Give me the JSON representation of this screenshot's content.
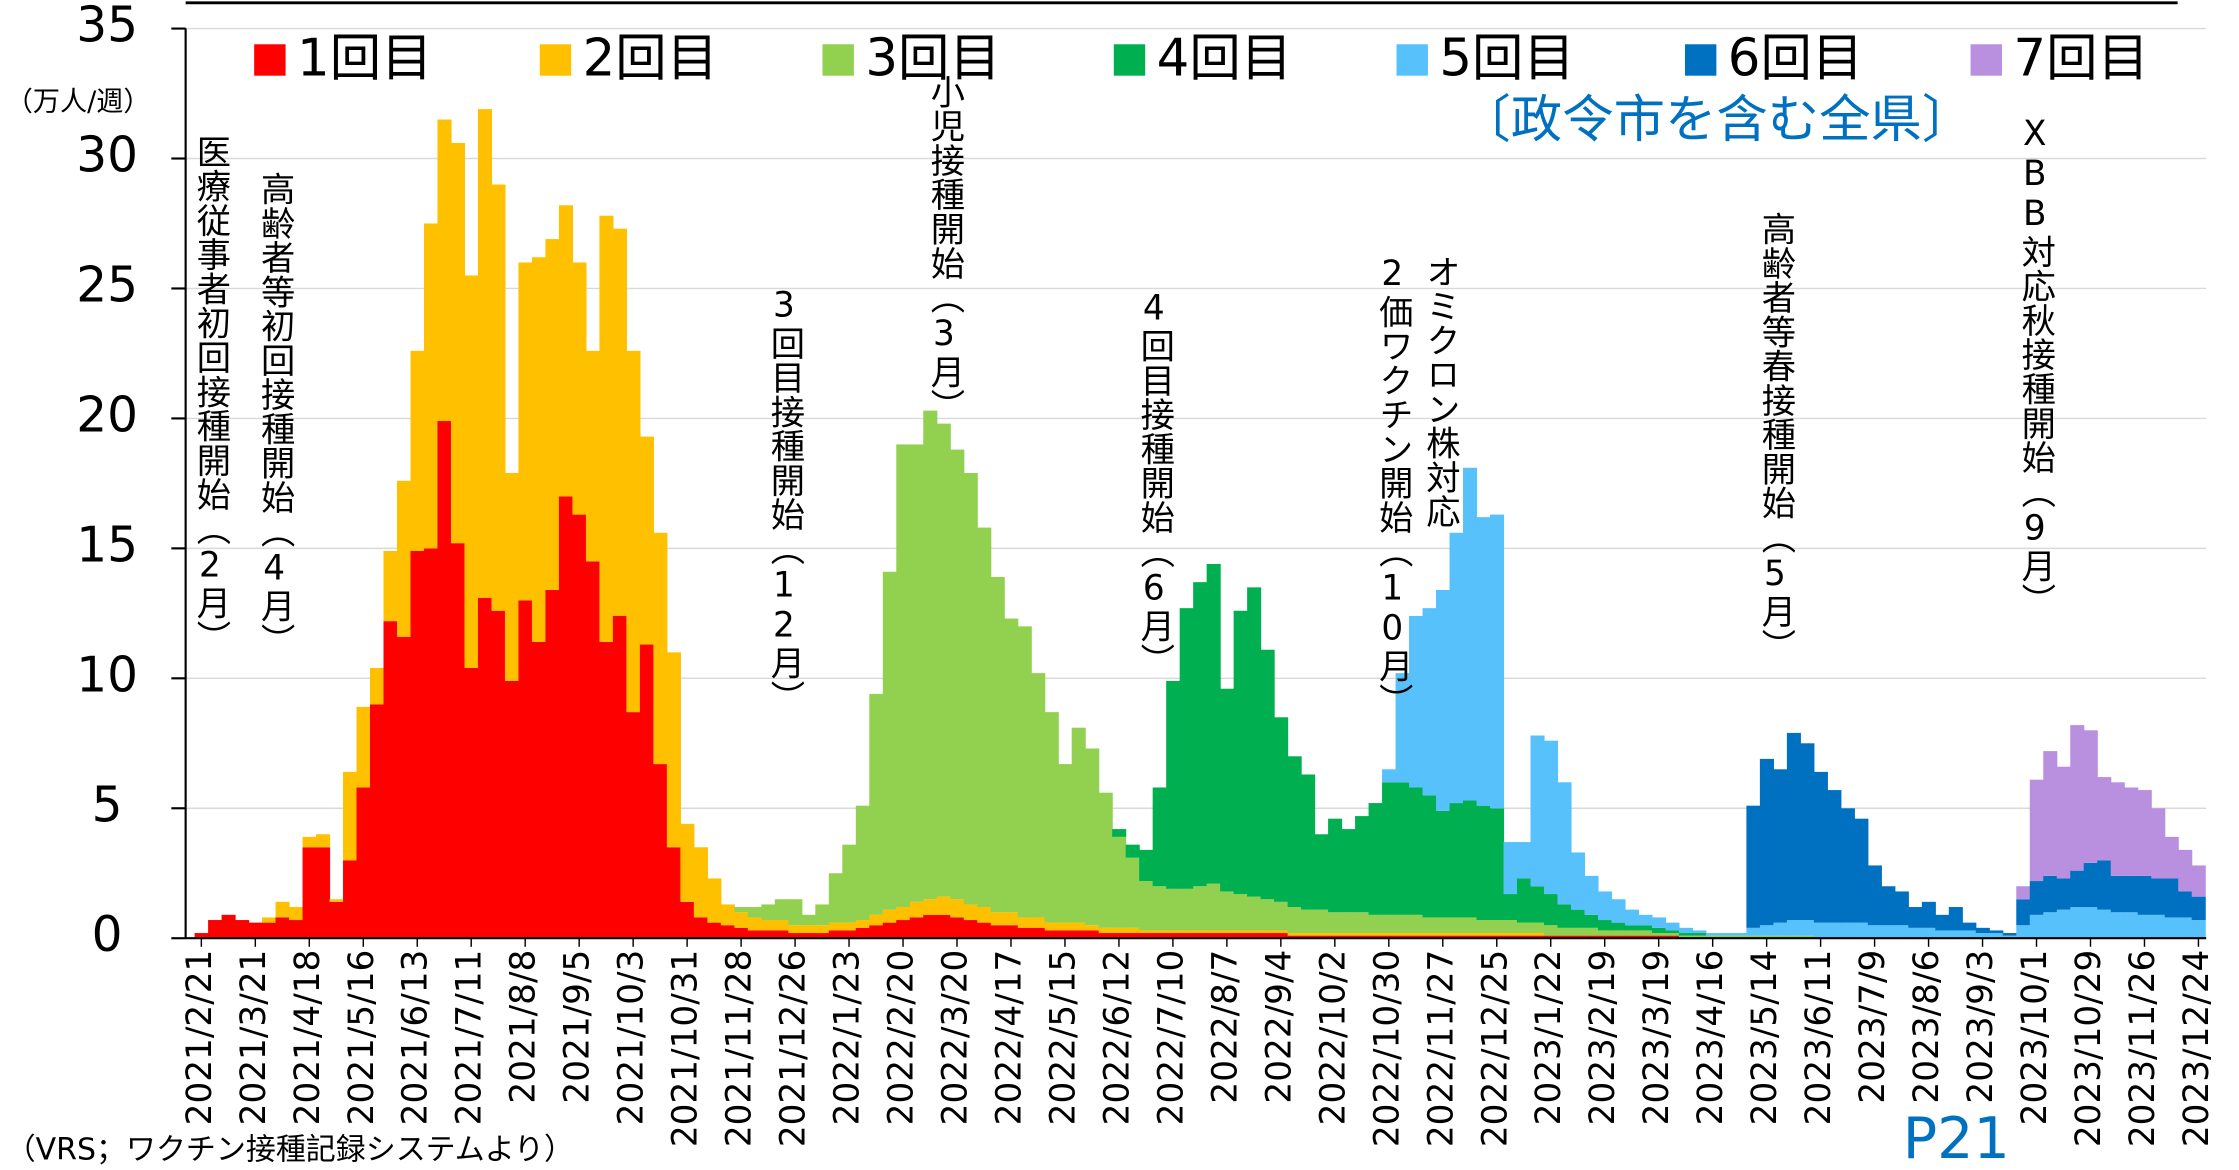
{
  "chart_data": {
    "type": "stacked_bar",
    "subtitle": "〔政令市を含む全県〕",
    "ylabel": "（万人/週）",
    "note": "（VRS；ワクチン接種記録システムより）",
    "page_label": "P21",
    "ylim": [
      0,
      35
    ],
    "yticks": [
      0,
      5,
      10,
      15,
      20,
      25,
      30,
      35
    ],
    "grid": true,
    "legend": "top",
    "annotations": [
      [
        "医療従事者初回接種開始（2月）"
      ],
      [
        "高齢者等初回接種開始（4月）"
      ],
      [
        "3回目接種開始（12月）"
      ],
      [
        "小児接種開始（3月）"
      ],
      [
        "4回目接種開始（6月）"
      ],
      [
        "オミクロン株対応",
        "2価ワクチン開始（10月）"
      ],
      [
        "高齢者等春接種開始（5月）"
      ],
      [
        "XBB対応秋接種開始（9月）"
      ]
    ],
    "categories": [
      "2021/2/21",
      null,
      null,
      null,
      "2021/3/21",
      null,
      null,
      null,
      "2021/4/18",
      null,
      null,
      null,
      "2021/5/16",
      null,
      null,
      null,
      "2021/6/13",
      null,
      null,
      null,
      "2021/7/11",
      null,
      null,
      null,
      "2021/8/8",
      null,
      null,
      null,
      "2021/9/5",
      null,
      null,
      null,
      "2021/10/3",
      null,
      null,
      null,
      "2021/10/31",
      null,
      null,
      null,
      "2021/11/28",
      null,
      null,
      null,
      "2021/12/26",
      null,
      null,
      null,
      "2022/1/23",
      null,
      null,
      null,
      "2022/2/20",
      null,
      null,
      null,
      "2022/3/20",
      null,
      null,
      null,
      "2022/4/17",
      null,
      null,
      null,
      "2022/5/15",
      null,
      null,
      null,
      "2022/6/12",
      null,
      null,
      null,
      "2022/7/10",
      null,
      null,
      null,
      "2022/8/7",
      null,
      null,
      null,
      "2022/9/4",
      null,
      null,
      null,
      "2022/10/2",
      null,
      null,
      null,
      "2022/10/30",
      null,
      null,
      null,
      "2022/11/27",
      null,
      null,
      null,
      "2022/12/25",
      null,
      null,
      null,
      "2023/1/22",
      null,
      null,
      null,
      "2023/2/19",
      null,
      null,
      null,
      "2023/3/19",
      null,
      null,
      null,
      "2023/4/16",
      null,
      null,
      null,
      "2023/5/14",
      null,
      null,
      null,
      "2023/6/11",
      null,
      null,
      null,
      "2023/7/9",
      null,
      null,
      null,
      "2023/8/6",
      null,
      null,
      null,
      "2023/9/3",
      null,
      null,
      null,
      "2023/10/1",
      null,
      null,
      null,
      "2023/10/29",
      null,
      null,
      null,
      "2023/11/26",
      null,
      null,
      null,
      "2023/12/24"
    ],
    "series": [
      {
        "name": "1回目",
        "color": "#ff0000",
        "values": [
          0.2,
          0.7,
          0.9,
          0.7,
          0.6,
          0.6,
          0.8,
          0.7,
          3.5,
          3.5,
          1.4,
          3.0,
          5.8,
          9.0,
          12.2,
          11.6,
          14.9,
          15.0,
          19.9,
          15.2,
          10.4,
          13.1,
          12.6,
          9.9,
          13.0,
          11.4,
          13.4,
          17.0,
          16.3,
          14.5,
          11.4,
          12.4,
          8.7,
          11.3,
          6.7,
          3.5,
          1.4,
          0.8,
          0.6,
          0.5,
          0.4,
          0.3,
          0.3,
          0.3,
          0.2,
          0.2,
          0.2,
          0.3,
          0.3,
          0.4,
          0.5,
          0.6,
          0.7,
          0.8,
          0.9,
          0.9,
          0.8,
          0.7,
          0.6,
          0.5,
          0.5,
          0.4,
          0.4,
          0.3,
          0.3,
          0.3,
          0.3,
          0.2,
          0.2,
          0.2,
          0.2,
          0.2,
          0.2,
          0.2,
          0.2,
          0.2,
          0.2,
          0.2,
          0.2,
          0.2,
          0.2,
          0.1,
          0.1,
          0.1,
          0.1,
          0.1,
          0.1,
          0.1,
          0.1,
          0.1,
          0.1,
          0.1,
          0.1,
          0.1,
          0.1,
          0.1,
          0.1,
          0.1,
          0.1,
          0.1,
          0.1,
          0.1,
          0.1,
          0.1,
          0.1,
          0.1,
          0.1,
          0.1,
          0.1,
          0.1,
          0,
          0,
          0,
          0,
          0,
          0,
          0,
          0,
          0,
          0,
          0,
          0,
          0,
          0,
          0,
          0,
          0,
          0,
          0,
          0,
          0,
          0,
          0,
          0,
          0,
          0,
          0,
          0,
          0,
          0,
          0,
          0,
          0,
          0,
          0,
          0,
          0,
          0,
          0
        ]
      },
      {
        "name": "2回目",
        "color": "#ffc000",
        "values": [
          0,
          0,
          0,
          0,
          0,
          0.2,
          0.6,
          0.5,
          0.4,
          0.5,
          0.1,
          3.4,
          3.1,
          1.4,
          2.7,
          6.0,
          7.7,
          12.5,
          11.6,
          15.4,
          15.1,
          18.8,
          16.4,
          8.0,
          13.0,
          14.8,
          13.5,
          11.2,
          9.7,
          8.1,
          16.4,
          14.9,
          13.9,
          8.0,
          8.9,
          7.5,
          3.0,
          2.7,
          1.7,
          0.8,
          0.6,
          0.5,
          0.4,
          0.4,
          0.3,
          0.3,
          0.3,
          0.3,
          0.3,
          0.3,
          0.4,
          0.5,
          0.5,
          0.6,
          0.6,
          0.7,
          0.7,
          0.6,
          0.6,
          0.5,
          0.5,
          0.4,
          0.4,
          0.3,
          0.3,
          0.3,
          0.2,
          0.2,
          0.2,
          0.2,
          0.1,
          0.1,
          0.1,
          0.1,
          0.1,
          0.1,
          0.1,
          0.1,
          0.1,
          0.1,
          0.1,
          0.1,
          0.1,
          0.1,
          0.1,
          0.1,
          0.1,
          0.1,
          0.1,
          0.1,
          0.1,
          0.1,
          0.1,
          0.1,
          0.1,
          0.1,
          0.1,
          0.1,
          0.1,
          0.1,
          0,
          0,
          0,
          0,
          0,
          0,
          0,
          0,
          0,
          0,
          0,
          0,
          0,
          0,
          0,
          0,
          0,
          0,
          0,
          0,
          0,
          0,
          0,
          0,
          0,
          0,
          0,
          0,
          0,
          0,
          0,
          0,
          0,
          0,
          0,
          0,
          0,
          0,
          0,
          0,
          0,
          0,
          0,
          0,
          0,
          0,
          0,
          0,
          0
        ]
      },
      {
        "name": "3回目",
        "color": "#92d050",
        "values": [
          0,
          0,
          0,
          0,
          0,
          0,
          0,
          0,
          0,
          0,
          0,
          0,
          0,
          0,
          0,
          0,
          0,
          0,
          0,
          0,
          0,
          0,
          0,
          0,
          0,
          0,
          0,
          0,
          0,
          0,
          0,
          0,
          0,
          0,
          0,
          0,
          0,
          0,
          0,
          0,
          0.2,
          0.4,
          0.6,
          0.8,
          1.0,
          0.4,
          0.8,
          1.9,
          3.0,
          4.4,
          8.5,
          13.0,
          17.8,
          17.6,
          18.8,
          18.2,
          17.3,
          16.6,
          14.6,
          12.9,
          11.3,
          11.2,
          9.4,
          8.1,
          6.1,
          7.5,
          6.8,
          5.2,
          3.5,
          2.7,
          1.9,
          1.7,
          1.6,
          1.6,
          1.7,
          1.8,
          1.5,
          1.4,
          1.3,
          1.2,
          1.1,
          1.0,
          0.9,
          0.9,
          0.8,
          0.8,
          0.8,
          0.7,
          0.7,
          0.7,
          0.7,
          0.6,
          0.6,
          0.6,
          0.6,
          0.5,
          0.5,
          0.5,
          0.4,
          0.4,
          0.4,
          0.3,
          0.3,
          0.3,
          0.2,
          0.2,
          0.2,
          0.2,
          0.1,
          0.1,
          0.1,
          0.1,
          0.1,
          0.1,
          0.1,
          0.1,
          0.1,
          0.1,
          0.1,
          0.1,
          0,
          0,
          0,
          0,
          0,
          0,
          0,
          0,
          0,
          0,
          0,
          0,
          0,
          0,
          0,
          0,
          0,
          0,
          0,
          0,
          0,
          0,
          0,
          0,
          0,
          0,
          0,
          0,
          0
        ]
      },
      {
        "name": "4回目",
        "color": "#00b050",
        "values": [
          0,
          0,
          0,
          0,
          0,
          0,
          0,
          0,
          0,
          0,
          0,
          0,
          0,
          0,
          0,
          0,
          0,
          0,
          0,
          0,
          0,
          0,
          0,
          0,
          0,
          0,
          0,
          0,
          0,
          0,
          0,
          0,
          0,
          0,
          0,
          0,
          0,
          0,
          0,
          0,
          0,
          0,
          0,
          0,
          0,
          0,
          0,
          0,
          0,
          0,
          0,
          0,
          0,
          0,
          0,
          0,
          0,
          0,
          0,
          0,
          0,
          0,
          0,
          0,
          0,
          0,
          0,
          0,
          0.3,
          0.5,
          1.2,
          3.8,
          8.0,
          10.8,
          11.7,
          12.3,
          7.8,
          10.9,
          11.9,
          9.6,
          7.1,
          5.8,
          5.2,
          2.9,
          3.6,
          3.2,
          3.7,
          4.3,
          5.1,
          5.1,
          4.9,
          4.7,
          4.1,
          4.4,
          4.5,
          4.4,
          4.3,
          1.0,
          1.7,
          1.4,
          1.2,
          0.9,
          0.7,
          0.5,
          0.4,
          0.3,
          0.2,
          0.2,
          0.2,
          0.1,
          0.1,
          0.1,
          0,
          0,
          0,
          0,
          0,
          0,
          0,
          0,
          0,
          0,
          0,
          0,
          0,
          0,
          0,
          0,
          0,
          0,
          0,
          0,
          0,
          0,
          0,
          0,
          0,
          0,
          0,
          0,
          0,
          0,
          0,
          0,
          0,
          0,
          0,
          0,
          0
        ]
      },
      {
        "name": "5回目",
        "color": "#57c1fb",
        "values": [
          0,
          0,
          0,
          0,
          0,
          0,
          0,
          0,
          0,
          0,
          0,
          0,
          0,
          0,
          0,
          0,
          0,
          0,
          0,
          0,
          0,
          0,
          0,
          0,
          0,
          0,
          0,
          0,
          0,
          0,
          0,
          0,
          0,
          0,
          0,
          0,
          0,
          0,
          0,
          0,
          0,
          0,
          0,
          0,
          0,
          0,
          0,
          0,
          0,
          0,
          0,
          0,
          0,
          0,
          0,
          0,
          0,
          0,
          0,
          0,
          0,
          0,
          0,
          0,
          0,
          0,
          0,
          0,
          0,
          0,
          0,
          0,
          0,
          0,
          0,
          0,
          0,
          0,
          0,
          0,
          0,
          0,
          0,
          0,
          0,
          0,
          0,
          0,
          0.5,
          4.2,
          6.6,
          7.2,
          8.5,
          10.4,
          12.8,
          11.1,
          11.3,
          2.0,
          1.4,
          5.8,
          5.9,
          4.7,
          2.2,
          1.5,
          1.1,
          0.9,
          0.6,
          0.4,
          0.4,
          0.3,
          0.2,
          0.1,
          0.1,
          0.1,
          0.1,
          0.3,
          0.4,
          0.5,
          0.6,
          0.6,
          0.6,
          0.6,
          0.6,
          0.6,
          0.5,
          0.5,
          0.5,
          0.4,
          0.4,
          0.3,
          0.3,
          0.3,
          0.2,
          0.2,
          0.1,
          0.5,
          0.9,
          1.0,
          1.1,
          1.2,
          1.2,
          1.1,
          1.0,
          1.0,
          0.9,
          0.9,
          0.8,
          0.8,
          0.7
        ]
      },
      {
        "name": "6回目",
        "color": "#0070c0",
        "values": [
          0,
          0,
          0,
          0,
          0,
          0,
          0,
          0,
          0,
          0,
          0,
          0,
          0,
          0,
          0,
          0,
          0,
          0,
          0,
          0,
          0,
          0,
          0,
          0,
          0,
          0,
          0,
          0,
          0,
          0,
          0,
          0,
          0,
          0,
          0,
          0,
          0,
          0,
          0,
          0,
          0,
          0,
          0,
          0,
          0,
          0,
          0,
          0,
          0,
          0,
          0,
          0,
          0,
          0,
          0,
          0,
          0,
          0,
          0,
          0,
          0,
          0,
          0,
          0,
          0,
          0,
          0,
          0,
          0,
          0,
          0,
          0,
          0,
          0,
          0,
          0,
          0,
          0,
          0,
          0,
          0,
          0,
          0,
          0,
          0,
          0,
          0,
          0,
          0,
          0,
          0,
          0,
          0,
          0,
          0,
          0,
          0,
          0,
          0,
          0,
          0,
          0,
          0,
          0,
          0,
          0,
          0,
          0,
          0,
          0,
          0,
          0,
          0,
          0,
          0,
          4.7,
          6.4,
          5.9,
          7.2,
          6.8,
          5.8,
          5.1,
          4.4,
          4.0,
          2.3,
          1.5,
          1.3,
          0.8,
          1.0,
          0.6,
          0.9,
          0.3,
          0.2,
          0.1,
          0.1,
          1.0,
          1.3,
          1.4,
          1.2,
          1.4,
          1.7,
          1.9,
          1.4,
          1.4,
          1.5,
          1.4,
          1.5,
          1.0,
          0.9
        ]
      },
      {
        "name": "7回目",
        "color": "#b98fe0",
        "values": [
          0,
          0,
          0,
          0,
          0,
          0,
          0,
          0,
          0,
          0,
          0,
          0,
          0,
          0,
          0,
          0,
          0,
          0,
          0,
          0,
          0,
          0,
          0,
          0,
          0,
          0,
          0,
          0,
          0,
          0,
          0,
          0,
          0,
          0,
          0,
          0,
          0,
          0,
          0,
          0,
          0,
          0,
          0,
          0,
          0,
          0,
          0,
          0,
          0,
          0,
          0,
          0,
          0,
          0,
          0,
          0,
          0,
          0,
          0,
          0,
          0,
          0,
          0,
          0,
          0,
          0,
          0,
          0,
          0,
          0,
          0,
          0,
          0,
          0,
          0,
          0,
          0,
          0,
          0,
          0,
          0,
          0,
          0,
          0,
          0,
          0,
          0,
          0,
          0,
          0,
          0,
          0,
          0,
          0,
          0,
          0,
          0,
          0,
          0,
          0,
          0,
          0,
          0,
          0,
          0,
          0,
          0,
          0,
          0,
          0,
          0,
          0,
          0,
          0,
          0,
          0,
          0,
          0,
          0,
          0,
          0,
          0,
          0,
          0,
          0,
          0,
          0,
          0,
          0,
          0,
          0,
          0,
          0,
          0,
          0,
          0.5,
          3.9,
          4.8,
          4.3,
          5.6,
          5.1,
          3.2,
          3.6,
          3.4,
          3.3,
          2.7,
          1.6,
          1.6,
          1.2
        ]
      }
    ]
  }
}
